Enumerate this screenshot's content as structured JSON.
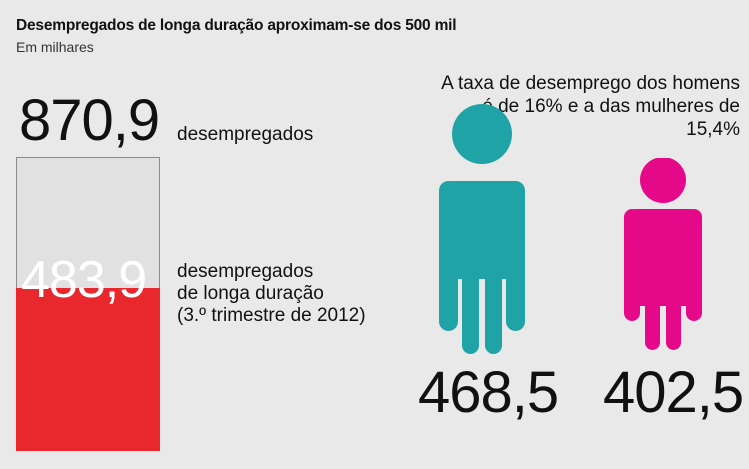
{
  "header": {
    "title": "Desempregados de longa duração aproximam-se dos 500 mil",
    "subtitle": "Em milhares"
  },
  "total": {
    "value": "870,9",
    "label": "desempregados"
  },
  "long_term": {
    "value": "483,9",
    "label_lines": [
      "desempregados",
      "de longa duração",
      "(3.º trimestre de 2012)"
    ]
  },
  "rate_note": {
    "lines": [
      "A taxa de desemprego dos homens",
      "é de 16% e a das mulheres de 15,4%"
    ]
  },
  "men": {
    "value": "468,5",
    "color": "#1fa3a7"
  },
  "women": {
    "value": "402,5",
    "color": "#e5098a"
  },
  "colors": {
    "background": "#e9e9e9",
    "bar_total": "#e1e1e1",
    "bar_long_term": "#e8282d"
  },
  "chart_data": {
    "type": "bar",
    "title": "Desempregados de longa duração aproximam-se dos 500 mil",
    "subtitle": "Em milhares",
    "categories": [
      "desempregados",
      "desempregados de longa duração (3.º trimestre de 2012)"
    ],
    "values": [
      870.9,
      483.9
    ],
    "breakdown": {
      "categories": [
        "homens",
        "mulheres"
      ],
      "values": [
        468.5,
        402.5
      ]
    },
    "unemployment_rate_percent": {
      "homens": 16,
      "mulheres": 15.4
    }
  }
}
